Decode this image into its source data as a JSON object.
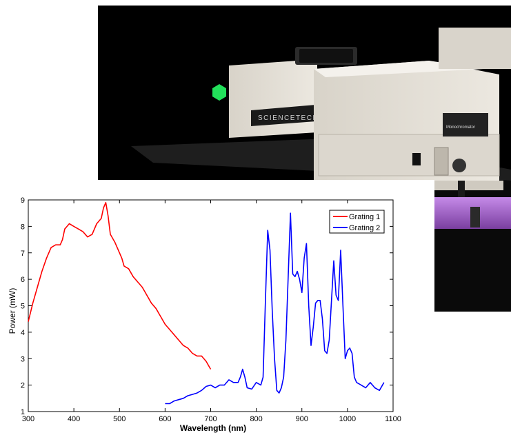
{
  "photo": {
    "brand_label": "SCIENCETECH",
    "device_label": "Monochromator",
    "colors": {
      "background": "#000000",
      "housing": "#e6e2da",
      "housing_shadow": "#c9c4ba",
      "led": "#22e05a",
      "glow": "#b37ad6"
    }
  },
  "chart_data": {
    "type": "line",
    "title": "",
    "xlabel": "Wavelength (nm)",
    "ylabel": "Power (mW)",
    "xlim": [
      300,
      1100
    ],
    "ylim": [
      1,
      9
    ],
    "xticks": [
      300,
      400,
      500,
      600,
      700,
      800,
      900,
      1000,
      1100
    ],
    "yticks": [
      1,
      2,
      3,
      4,
      5,
      6,
      7,
      8,
      9
    ],
    "grid": false,
    "legend_position": "top-right",
    "series": [
      {
        "name": "Grating 1",
        "color": "#ff0000",
        "x": [
          300,
          310,
          320,
          330,
          340,
          350,
          360,
          370,
          375,
          380,
          385,
          390,
          400,
          410,
          420,
          430,
          440,
          450,
          460,
          465,
          470,
          475,
          480,
          490,
          500,
          505,
          510,
          520,
          530,
          540,
          550,
          560,
          570,
          580,
          590,
          600,
          610,
          620,
          630,
          640,
          650,
          660,
          670,
          680,
          690,
          700
        ],
        "y": [
          4.4,
          5.1,
          5.7,
          6.3,
          6.8,
          7.2,
          7.3,
          7.3,
          7.5,
          7.9,
          8.0,
          8.1,
          8.0,
          7.9,
          7.8,
          7.6,
          7.7,
          8.1,
          8.3,
          8.7,
          8.9,
          8.4,
          7.7,
          7.4,
          7.0,
          6.8,
          6.5,
          6.4,
          6.1,
          5.9,
          5.7,
          5.4,
          5.1,
          4.9,
          4.6,
          4.3,
          4.1,
          3.9,
          3.7,
          3.5,
          3.4,
          3.2,
          3.1,
          3.1,
          2.9,
          2.6
        ]
      },
      {
        "name": "Grating 2",
        "color": "#0000ff",
        "x": [
          600,
          610,
          620,
          630,
          640,
          650,
          660,
          670,
          680,
          690,
          700,
          710,
          720,
          730,
          740,
          750,
          760,
          765,
          770,
          775,
          780,
          790,
          800,
          810,
          815,
          820,
          825,
          830,
          835,
          840,
          845,
          850,
          855,
          860,
          865,
          870,
          875,
          880,
          885,
          890,
          895,
          900,
          905,
          910,
          915,
          920,
          925,
          930,
          935,
          940,
          945,
          950,
          955,
          960,
          965,
          970,
          975,
          980,
          985,
          990,
          995,
          1000,
          1005,
          1010,
          1015,
          1020,
          1030,
          1040,
          1050,
          1060,
          1070,
          1080
        ],
        "y": [
          1.3,
          1.3,
          1.4,
          1.45,
          1.5,
          1.6,
          1.65,
          1.7,
          1.8,
          1.95,
          2.0,
          1.9,
          2.0,
          2.0,
          2.2,
          2.1,
          2.1,
          2.3,
          2.6,
          2.3,
          1.9,
          1.85,
          2.1,
          2.0,
          2.3,
          5.2,
          7.85,
          7.1,
          4.8,
          3.0,
          1.8,
          1.7,
          1.9,
          2.3,
          3.7,
          6.1,
          8.5,
          6.2,
          6.1,
          6.3,
          6.0,
          5.5,
          6.8,
          7.35,
          5.0,
          3.5,
          4.2,
          5.1,
          5.2,
          5.2,
          4.5,
          3.3,
          3.2,
          3.7,
          5.2,
          6.7,
          5.4,
          5.2,
          7.1,
          5.0,
          3.0,
          3.3,
          3.4,
          3.2,
          2.3,
          2.1,
          2.0,
          1.9,
          2.1,
          1.9,
          1.8,
          2.1
        ]
      }
    ]
  }
}
